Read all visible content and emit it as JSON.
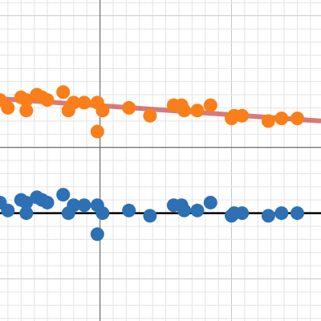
{
  "colors": {
    "series_a": "#fa7e19",
    "series_b": "#2d70b3",
    "trend_line": "#c74440",
    "reference_line": "#000000"
  },
  "chart_data": {
    "type": "scatter",
    "title": "",
    "xlabel": "",
    "ylabel": "",
    "xlim": [
      -3.8,
      8.4
    ],
    "ylim": [
      -6.6,
      5.6
    ],
    "grid": true,
    "series": [
      {
        "color_key": "series_a",
        "points": [
          [
            -3.8,
            1.8
          ],
          [
            -3.5,
            1.5
          ],
          [
            -3.0,
            1.9
          ],
          [
            -2.8,
            1.8
          ],
          [
            -2.8,
            1.4
          ],
          [
            -2.4,
            2.0
          ],
          [
            -2.2,
            1.9
          ],
          [
            -2.0,
            1.8
          ],
          [
            -1.4,
            2.1
          ],
          [
            -1.2,
            1.4
          ],
          [
            -1.0,
            1.7
          ],
          [
            -0.6,
            1.7
          ],
          [
            -0.1,
            1.7
          ],
          [
            -0.1,
            0.6
          ],
          [
            0.1,
            1.4
          ],
          [
            1.1,
            1.5
          ],
          [
            1.9,
            1.2
          ],
          [
            2.8,
            1.6
          ],
          [
            3.1,
            1.6
          ],
          [
            3.2,
            1.4
          ],
          [
            3.7,
            1.4
          ],
          [
            4.2,
            1.6
          ],
          [
            5.0,
            1.1
          ],
          [
            5.1,
            1.2
          ],
          [
            5.4,
            1.2
          ],
          [
            6.4,
            1.0
          ],
          [
            6.9,
            1.1
          ],
          [
            7.5,
            1.1
          ]
        ]
      },
      {
        "color_key": "series_b",
        "points": [
          [
            -3.8,
            -2.1
          ],
          [
            -3.5,
            -2.4
          ],
          [
            -3.0,
            -2.0
          ],
          [
            -2.8,
            -2.1
          ],
          [
            -2.8,
            -2.5
          ],
          [
            -2.4,
            -1.9
          ],
          [
            -2.2,
            -2.0
          ],
          [
            -2.0,
            -2.1
          ],
          [
            -1.4,
            -1.8
          ],
          [
            -1.2,
            -2.5
          ],
          [
            -1.0,
            -2.2
          ],
          [
            -0.6,
            -2.2
          ],
          [
            -0.1,
            -2.2
          ],
          [
            -0.1,
            -3.3
          ],
          [
            0.1,
            -2.5
          ],
          [
            1.1,
            -2.4
          ],
          [
            1.9,
            -2.6
          ],
          [
            2.8,
            -2.2
          ],
          [
            3.1,
            -2.2
          ],
          [
            3.2,
            -2.4
          ],
          [
            3.7,
            -2.4
          ],
          [
            4.2,
            -2.1
          ],
          [
            5.0,
            -2.6
          ],
          [
            5.1,
            -2.5
          ],
          [
            5.4,
            -2.5
          ],
          [
            6.4,
            -2.6
          ],
          [
            6.9,
            -2.5
          ],
          [
            7.5,
            -2.5
          ]
        ]
      }
    ],
    "lines": [
      {
        "color_key": "trend_line",
        "from": [
          -3.8,
          1.85
        ],
        "to": [
          8.4,
          1.0
        ]
      },
      {
        "color_key": "reference_line",
        "from": [
          -3.8,
          -2.5
        ],
        "to": [
          8.4,
          -2.5
        ]
      }
    ]
  }
}
